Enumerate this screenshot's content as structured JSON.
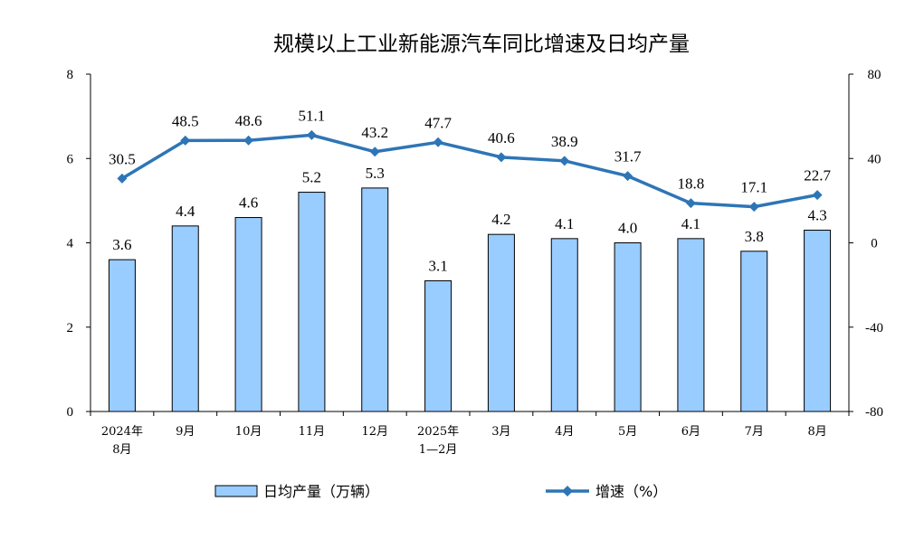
{
  "chart_data": {
    "type": "bar+line",
    "title": "规模以上工业新能源汽车同比增速及日均产量",
    "categories": [
      [
        "2024年",
        "8月"
      ],
      [
        "9月"
      ],
      [
        "10月"
      ],
      [
        "11月"
      ],
      [
        "12月"
      ],
      [
        "2025年",
        "1—2月"
      ],
      [
        "3月"
      ],
      [
        "4月"
      ],
      [
        "5月"
      ],
      [
        "6月"
      ],
      [
        "7月"
      ],
      [
        "8月"
      ]
    ],
    "bar_series": {
      "name": "日均产量（万辆）",
      "values": [
        3.6,
        4.4,
        4.6,
        5.2,
        5.3,
        3.1,
        4.2,
        4.1,
        4.0,
        4.1,
        3.8,
        4.3
      ],
      "labels": [
        "3.6",
        "4.4",
        "4.6",
        "5.2",
        "5.3",
        "3.1",
        "4.2",
        "4.1",
        "4.0",
        "4.1",
        "3.8",
        "4.3"
      ],
      "color": "#99CCFF",
      "axis": "left"
    },
    "line_series": {
      "name": "增速（%）",
      "values": [
        30.5,
        48.5,
        48.6,
        51.1,
        43.2,
        47.7,
        40.6,
        38.9,
        31.7,
        18.8,
        17.1,
        22.7
      ],
      "labels": [
        "30.5",
        "48.5",
        "48.6",
        "51.1",
        "43.2",
        "47.7",
        "40.6",
        "38.9",
        "31.7",
        "18.8",
        "17.1",
        "22.7"
      ],
      "color": "#2E75B6",
      "axis": "right"
    },
    "left_axis": {
      "ylim": [
        0,
        8
      ],
      "ticks": [
        "0",
        "2",
        "4",
        "6",
        "8"
      ],
      "tick_values": [
        0,
        2,
        4,
        6,
        8
      ]
    },
    "right_axis": {
      "ylim": [
        -80,
        80
      ],
      "ticks": [
        "-80",
        "-40",
        "0",
        "40",
        "80"
      ],
      "tick_values": [
        -80,
        -40,
        0,
        40,
        80
      ]
    },
    "grid": false,
    "legend_position": "bottom"
  }
}
